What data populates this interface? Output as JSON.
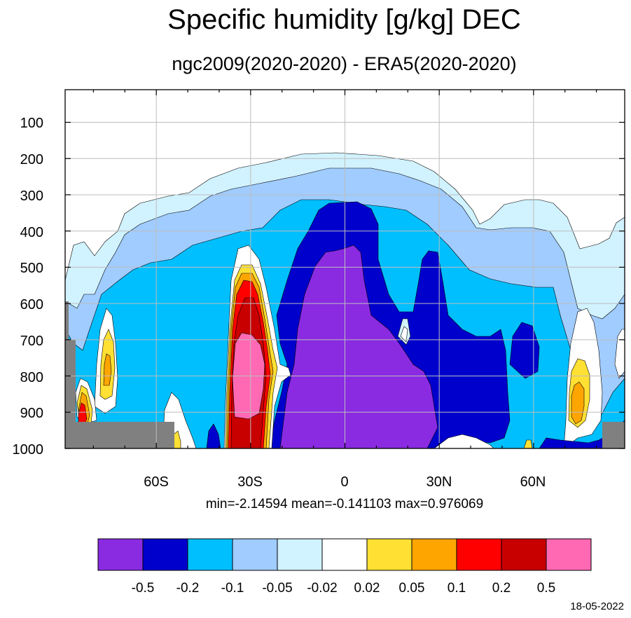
{
  "title": "Specific humidity [g/kg] DEC",
  "subtitle": "ngc2009(2020-2020) - ERA5(2020-2020)",
  "stats": "min=-2.14594   mean=-0.141103   max=0.976069",
  "date": "18-05-2022",
  "colors": {
    "lt_-0.5": "#8a2be2",
    "-0.5_-0.2": "#0000cd",
    "-0.2_-0.1": "#00bfff",
    "-0.1_-0.05": "#a0ccff",
    "-0.05_-0.02": "#d1f2ff",
    "-0.02_0.02": "#ffffff",
    "0.02_0.05": "#ffe033",
    "0.05_0.1": "#ffa500",
    "0.1_0.2": "#ff0000",
    "0.2_0.5": "#c80000",
    "gt_0.5": "#ff69b4",
    "missing": "#808080"
  },
  "chart_data": {
    "type": "heatmap",
    "title": "Specific humidity [g/kg] DEC",
    "subtitle": "ngc2009(2020-2020) - ERA5(2020-2020)",
    "xlabel": "",
    "ylabel": "",
    "x_ticks": [
      "60S",
      "30S",
      "0",
      "30N",
      "60N"
    ],
    "x_tick_values": [
      -60,
      -30,
      0,
      30,
      60
    ],
    "xlim": [
      -89,
      89
    ],
    "y_ticks": [
      "100",
      "200",
      "300",
      "400",
      "500",
      "600",
      "700",
      "800",
      "900",
      "1000"
    ],
    "y_tick_values": [
      100,
      200,
      300,
      400,
      500,
      600,
      700,
      800,
      900,
      1000
    ],
    "ylim": [
      1000,
      10
    ],
    "grid": true,
    "colorbar": {
      "levels": [
        "-0.5",
        "-0.2",
        "-0.1",
        "-0.05",
        "-0.02",
        "0.02",
        "0.05",
        "0.1",
        "0.2",
        "0.5"
      ],
      "colors": [
        "#8a2be2",
        "#0000cd",
        "#00bfff",
        "#a0ccff",
        "#d1f2ff",
        "#ffffff",
        "#ffe033",
        "#ffa500",
        "#ff0000",
        "#c80000",
        "#ff69b4"
      ],
      "placement": "bottom"
    },
    "stats": {
      "min": -2.14594,
      "mean": -0.141103,
      "max": 0.976069
    }
  }
}
